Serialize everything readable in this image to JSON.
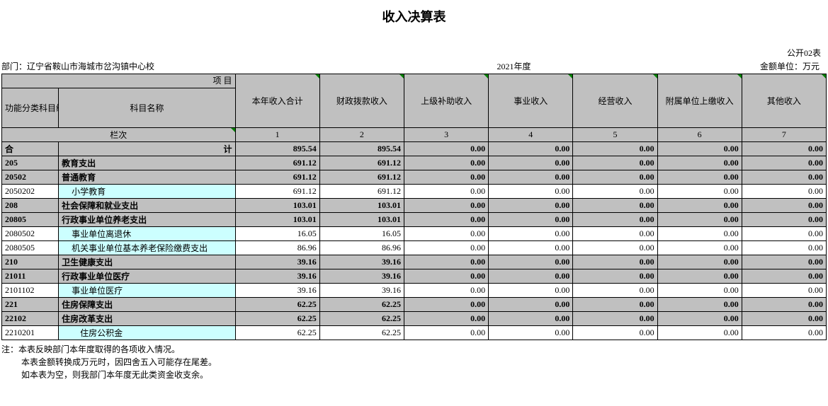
{
  "title": "收入决算表",
  "form_no": "公开02表",
  "meta": {
    "dept_label": "部门：",
    "dept": "辽宁省鞍山市海城市岔沟镇中心校",
    "year": "2021年度",
    "unit": "金额单位：万元"
  },
  "header": {
    "xiang": "项                                                              目",
    "code": "功能分类科目编码",
    "name": "科目名称",
    "cols": [
      "本年收入合计",
      "财政拨款收入",
      "上级补助收入",
      "事业收入",
      "经营收入",
      "附属单位上缴收入",
      "其他收入"
    ],
    "lanci": "栏次",
    "nums": [
      "1",
      "2",
      "3",
      "4",
      "5",
      "6",
      "7"
    ]
  },
  "rows": [
    {
      "style": "grey",
      "code": "合",
      "name": "计",
      "name_align": "right",
      "bold": true,
      "v": [
        "895.54",
        "895.54",
        "0.00",
        "0.00",
        "0.00",
        "0.00",
        "0.00"
      ]
    },
    {
      "style": "grey",
      "code": "205",
      "name": "教育支出",
      "bold": true,
      "v": [
        "691.12",
        "691.12",
        "0.00",
        "0.00",
        "0.00",
        "0.00",
        "0.00"
      ]
    },
    {
      "style": "grey",
      "code": "20502",
      "name": "普通教育",
      "bold": true,
      "v": [
        "691.12",
        "691.12",
        "0.00",
        "0.00",
        "0.00",
        "0.00",
        "0.00"
      ]
    },
    {
      "style": "white",
      "code": "2050202",
      "name": "小学教育",
      "cyan": true,
      "indent": 1,
      "v": [
        "691.12",
        "691.12",
        "0.00",
        "0.00",
        "0.00",
        "0.00",
        "0.00"
      ]
    },
    {
      "style": "grey",
      "code": "208",
      "name": "社会保障和就业支出",
      "bold": true,
      "v": [
        "103.01",
        "103.01",
        "0.00",
        "0.00",
        "0.00",
        "0.00",
        "0.00"
      ]
    },
    {
      "style": "grey",
      "code": "20805",
      "name": "行政事业单位养老支出",
      "bold": true,
      "v": [
        "103.01",
        "103.01",
        "0.00",
        "0.00",
        "0.00",
        "0.00",
        "0.00"
      ]
    },
    {
      "style": "white",
      "code": "2080502",
      "name": "事业单位离退休",
      "cyan": true,
      "indent": 1,
      "v": [
        "16.05",
        "16.05",
        "0.00",
        "0.00",
        "0.00",
        "0.00",
        "0.00"
      ]
    },
    {
      "style": "white",
      "code": "2080505",
      "name": "机关事业单位基本养老保险缴费支出",
      "cyan": true,
      "indent": 1,
      "v": [
        "86.96",
        "86.96",
        "0.00",
        "0.00",
        "0.00",
        "0.00",
        "0.00"
      ]
    },
    {
      "style": "grey",
      "code": "210",
      "name": "卫生健康支出",
      "bold": true,
      "v": [
        "39.16",
        "39.16",
        "0.00",
        "0.00",
        "0.00",
        "0.00",
        "0.00"
      ]
    },
    {
      "style": "grey",
      "code": "21011",
      "name": "行政事业单位医疗",
      "bold": true,
      "v": [
        "39.16",
        "39.16",
        "0.00",
        "0.00",
        "0.00",
        "0.00",
        "0.00"
      ]
    },
    {
      "style": "white",
      "code": "2101102",
      "name": "事业单位医疗",
      "cyan": true,
      "indent": 1,
      "v": [
        "39.16",
        "39.16",
        "0.00",
        "0.00",
        "0.00",
        "0.00",
        "0.00"
      ]
    },
    {
      "style": "grey",
      "code": "221",
      "name": "住房保障支出",
      "bold": true,
      "v": [
        "62.25",
        "62.25",
        "0.00",
        "0.00",
        "0.00",
        "0.00",
        "0.00"
      ]
    },
    {
      "style": "grey",
      "code": "22102",
      "name": "住房改革支出",
      "bold": true,
      "v": [
        "62.25",
        "62.25",
        "0.00",
        "0.00",
        "0.00",
        "0.00",
        "0.00"
      ]
    },
    {
      "style": "white",
      "code": "2210201",
      "name": "住房公积金",
      "cyan": true,
      "indent": 2,
      "v": [
        "62.25",
        "62.25",
        "0.00",
        "0.00",
        "0.00",
        "0.00",
        "0.00"
      ]
    }
  ],
  "notes": [
    "注：本表反映部门本年度取得的各项收入情况。",
    "本表金额转换成万元时，因四舍五入可能存在尾差。",
    "如本表为空，则我部门本年度无此类资金收支余。"
  ],
  "colors": {
    "grey": "#c0c0c0",
    "cyan": "#ccffff",
    "border": "#000000",
    "triangle": "#008000"
  }
}
